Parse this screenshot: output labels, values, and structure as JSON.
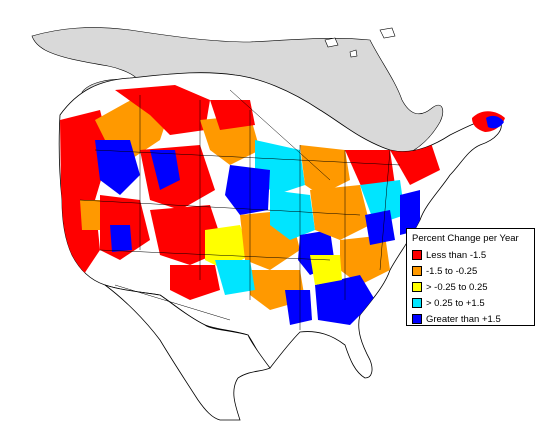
{
  "legend": {
    "title": "Percent Change per Year",
    "items": [
      {
        "label": "Less than -1.5",
        "color": "#ff0000"
      },
      {
        "label": "-1.5 to -0.25",
        "color": "#ff9900"
      },
      {
        "label": "> -0.25 to 0.25",
        "color": "#ffff00"
      },
      {
        "label": "> 0.25 to +1.5",
        "color": "#00e5ff"
      },
      {
        "label": "Greater than +1.5",
        "color": "#0000ff"
      }
    ]
  },
  "colors": {
    "background": "#ffffff",
    "no_data_region": "#d9d9d9",
    "boundary": "#000000"
  }
}
